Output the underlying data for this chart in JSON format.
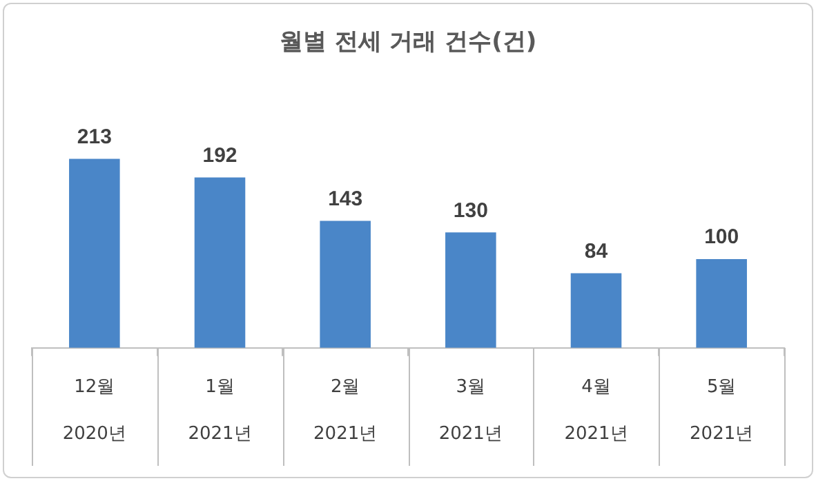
{
  "chart_data": {
    "type": "bar",
    "title": "월별 전세 거래 건수(건)",
    "categories": [
      "12월\n2020년",
      "1월\n2021년",
      "2월\n2021년",
      "3월\n2021년",
      "4월\n2021년",
      "5월\n2021년"
    ],
    "values": [
      213,
      192,
      143,
      130,
      84,
      100
    ],
    "color": "#4a86c8",
    "data_labels": true,
    "legend": false
  }
}
